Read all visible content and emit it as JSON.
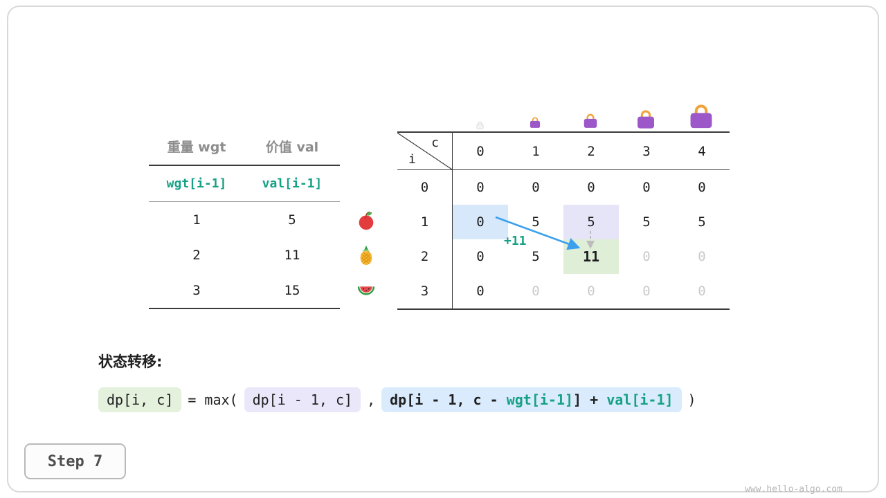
{
  "meta": {
    "step_button": "Step 7",
    "watermark": "www.hello-algo.com"
  },
  "item_table": {
    "col_headers": [
      "重量 wgt",
      "价值 val"
    ],
    "index_row": [
      "wgt[i-1]",
      "val[i-1]"
    ],
    "rows": [
      {
        "wgt": "1",
        "val": "5",
        "icon": "apple-icon"
      },
      {
        "wgt": "2",
        "val": "11",
        "icon": "pineapple-icon"
      },
      {
        "wgt": "3",
        "val": "15",
        "icon": "watermelon-icon"
      }
    ]
  },
  "dp_table": {
    "corner": {
      "top": "c",
      "bottom": "i"
    },
    "col_headers": [
      "0",
      "1",
      "2",
      "3",
      "4"
    ],
    "rows": [
      {
        "label": "0",
        "cells": [
          {
            "v": "0"
          },
          {
            "v": "0"
          },
          {
            "v": "0"
          },
          {
            "v": "0"
          },
          {
            "v": "0"
          }
        ]
      },
      {
        "label": "1",
        "cells": [
          {
            "v": "0",
            "hl": "blue"
          },
          {
            "v": "5"
          },
          {
            "v": "5",
            "hl": "lavender"
          },
          {
            "v": "5"
          },
          {
            "v": "5"
          }
        ]
      },
      {
        "label": "2",
        "cells": [
          {
            "v": "0"
          },
          {
            "v": "5"
          },
          {
            "v": "11",
            "hl": "green",
            "bold": true
          },
          {
            "v": "0",
            "faded": true
          },
          {
            "v": "0",
            "faded": true
          }
        ]
      },
      {
        "label": "3",
        "cells": [
          {
            "v": "0"
          },
          {
            "v": "0",
            "faded": true
          },
          {
            "v": "0",
            "faded": true
          },
          {
            "v": "0",
            "faded": true
          },
          {
            "v": "0",
            "faded": true
          }
        ]
      }
    ],
    "annotation": "+11"
  },
  "formula": {
    "label": "状态转移:",
    "lhs": "dp[i, c]",
    "equals": "= max(",
    "arg1": "dp[i - 1, c]",
    "separator": ",",
    "arg2": [
      {
        "text": "dp[i - 1, c - ",
        "color": "dark"
      },
      {
        "text": "wgt[i-1]",
        "color": "green"
      },
      {
        "text": "] + ",
        "color": "dark"
      },
      {
        "text": "val[i-1]",
        "color": "green"
      }
    ],
    "close": ")"
  },
  "colors": {
    "code_green": "#16a085",
    "cell_blue": "#d6e8f9",
    "cell_lavender": "#e6e4f7",
    "cell_green": "#dfeed6",
    "pill_green": "#e4f1dc",
    "pill_lavender": "#e9e7f9",
    "pill_blue": "#d9ebfc",
    "arrow_blue": "#3aa0ee",
    "arrow_gray": "#bdbdbd",
    "faded": "#c9c9c9",
    "bag_purple": "#9c58c8",
    "bag_handle": "#f0a33b"
  }
}
